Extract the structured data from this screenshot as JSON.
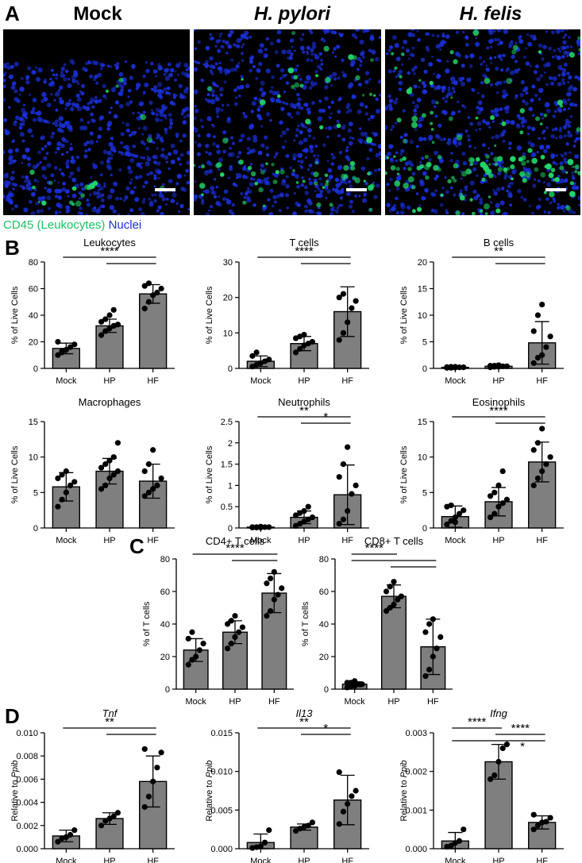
{
  "panels": {
    "A": "A",
    "B": "B",
    "C": "C",
    "D": "D"
  },
  "images": {
    "titles": [
      "Mock",
      "H. pylori",
      "H. felis"
    ],
    "legend_green": "CD45 (Leukocytes)",
    "legend_blue": "Nuclei",
    "colors": {
      "nuclei": "#1a2fd8",
      "cd45": "#22d66a",
      "background": "#000000"
    }
  },
  "colors": {
    "bar": "#7f7f7f",
    "point": "#000000"
  },
  "chart_data": [
    {
      "id": "leukocytes",
      "type": "bar",
      "title": "Leukocytes",
      "ylabel": "% of Live Cells",
      "categories": [
        "Mock",
        "HP",
        "HF"
      ],
      "values": [
        15,
        32,
        56
      ],
      "errors": [
        4,
        5,
        7
      ],
      "ylim": [
        0,
        80
      ],
      "yticks": [
        0,
        20,
        40,
        60,
        80
      ],
      "points": [
        [
          10,
          13,
          14,
          16,
          18,
          20,
          12
        ],
        [
          25,
          28,
          30,
          32,
          33,
          35,
          37,
          40,
          44
        ],
        [
          45,
          50,
          55,
          57,
          60,
          62,
          64
        ]
      ],
      "significance": [
        {
          "from": 0,
          "to": 2,
          "label": "****"
        },
        {
          "from": 1,
          "to": 2,
          "label": ""
        }
      ]
    },
    {
      "id": "t-cells",
      "type": "bar",
      "title": "T cells",
      "ylabel": "% of Live Cells",
      "categories": [
        "Mock",
        "HP",
        "HF"
      ],
      "values": [
        2,
        7,
        16
      ],
      "errors": [
        1.5,
        2,
        7
      ],
      "ylim": [
        0,
        30
      ],
      "yticks": [
        0,
        10,
        20,
        30
      ],
      "points": [
        [
          0.5,
          1,
          1.5,
          2,
          2.5,
          3.5,
          4.5
        ],
        [
          4.5,
          5.5,
          6.5,
          7,
          7.5,
          8.5,
          9,
          9.5
        ],
        [
          8,
          10,
          13,
          17,
          19,
          20,
          21
        ]
      ],
      "significance": [
        {
          "from": 0,
          "to": 2,
          "label": "****"
        },
        {
          "from": 1,
          "to": 2,
          "label": ""
        }
      ]
    },
    {
      "id": "b-cells",
      "type": "bar",
      "title": "B cells",
      "ylabel": "% of Live Cells",
      "categories": [
        "Mock",
        "HP",
        "HF"
      ],
      "values": [
        0.2,
        0.4,
        4.8
      ],
      "errors": [
        0.1,
        0.2,
        4
      ],
      "ylim": [
        0,
        20
      ],
      "yticks": [
        0,
        5,
        10,
        15,
        20
      ],
      "points": [
        [
          0.1,
          0.1,
          0.15,
          0.2,
          0.2,
          0.25,
          0.3,
          0.3
        ],
        [
          0.2,
          0.3,
          0.3,
          0.4,
          0.4,
          0.5,
          0.5,
          0.6
        ],
        [
          1,
          2,
          2.5,
          4,
          6,
          7,
          10,
          12
        ]
      ],
      "significance": [
        {
          "from": 0,
          "to": 2,
          "label": "**"
        },
        {
          "from": 1,
          "to": 2,
          "label": ""
        }
      ]
    },
    {
      "id": "macrophages",
      "type": "bar",
      "title": "Macrophages",
      "ylabel": "% of Live Cells",
      "categories": [
        "Mock",
        "HP",
        "HF"
      ],
      "values": [
        5.8,
        8,
        6.6
      ],
      "errors": [
        2,
        1.8,
        2.4
      ],
      "ylim": [
        0,
        15
      ],
      "yticks": [
        0,
        5,
        10,
        15
      ],
      "points": [
        [
          3,
          4,
          5,
          6,
          6.5,
          7,
          7.5,
          8
        ],
        [
          5.5,
          6,
          7,
          7.5,
          8,
          8.5,
          9,
          9.5,
          10,
          12
        ],
        [
          4.5,
          5,
          5.5,
          6,
          7,
          8,
          9,
          11
        ]
      ],
      "significance": []
    },
    {
      "id": "neutrophils",
      "type": "bar",
      "title": "Neutrophils",
      "ylabel": "% of Live Cells",
      "categories": [
        "Mock",
        "HP",
        "HF"
      ],
      "values": [
        0.02,
        0.25,
        0.78
      ],
      "errors": [
        0.01,
        0.15,
        0.7
      ],
      "ylim": [
        0,
        2.5
      ],
      "yticks": [
        0,
        0.5,
        1.0,
        1.5,
        2.0,
        2.5
      ],
      "points": [
        [
          0.01,
          0.01,
          0.01,
          0.02,
          0.02,
          0.02,
          0.02,
          0.03
        ],
        [
          0.05,
          0.1,
          0.15,
          0.2,
          0.25,
          0.3,
          0.35,
          0.4,
          0.5
        ],
        [
          0.1,
          0.2,
          0.4,
          0.8,
          1.0,
          1.2,
          1.5,
          1.9
        ]
      ],
      "significance": [
        {
          "from": 0,
          "to": 2,
          "label": "**"
        },
        {
          "from": 1,
          "to": 2,
          "label": "*"
        }
      ]
    },
    {
      "id": "eosinophils",
      "type": "bar",
      "title": "Eosinophils",
      "ylabel": "% of Live Cells",
      "categories": [
        "Mock",
        "HP",
        "HF"
      ],
      "values": [
        1.6,
        3.7,
        9.3
      ],
      "errors": [
        1.5,
        2,
        2.8
      ],
      "ylim": [
        0,
        15
      ],
      "yticks": [
        0,
        5,
        10,
        15
      ],
      "points": [
        [
          0.5,
          1,
          1.5,
          2,
          2.5,
          3,
          3.2,
          0.8
        ],
        [
          1.5,
          2,
          3,
          3.5,
          4,
          4.5,
          5,
          6,
          8
        ],
        [
          6,
          7,
          8,
          9,
          10,
          11,
          12,
          14
        ]
      ],
      "significance": [
        {
          "from": 0,
          "to": 2,
          "label": "****"
        },
        {
          "from": 1,
          "to": 2,
          "label": ""
        }
      ]
    },
    {
      "id": "cd4",
      "type": "bar",
      "title": "CD4+ T cells",
      "ylabel": "% of T cells",
      "categories": [
        "Mock",
        "HP",
        "HF"
      ],
      "values": [
        24,
        35,
        59
      ],
      "errors": [
        7,
        7,
        12
      ],
      "ylim": [
        0,
        80
      ],
      "yticks": [
        0,
        20,
        40,
        60,
        80
      ],
      "points": [
        [
          15,
          18,
          20,
          24,
          28,
          31,
          35
        ],
        [
          25,
          28,
          32,
          35,
          38,
          40,
          42,
          45
        ],
        [
          45,
          48,
          55,
          58,
          62,
          65,
          68,
          72
        ]
      ],
      "significance": [
        {
          "from": 0,
          "to": 2,
          "label": "****"
        },
        {
          "from": 1,
          "to": 2,
          "label": ""
        }
      ]
    },
    {
      "id": "cd8",
      "type": "bar",
      "title": "CD8+ T cells",
      "ylabel": "% of T cells",
      "categories": [
        "Mock",
        "HP",
        "HF"
      ],
      "values": [
        3,
        57,
        26
      ],
      "errors": [
        1.5,
        7,
        17
      ],
      "ylim": [
        0,
        80
      ],
      "yticks": [
        0,
        20,
        40,
        60,
        80
      ],
      "points": [
        [
          1,
          2,
          2,
          3,
          3,
          4,
          4,
          5
        ],
        [
          48,
          50,
          52,
          55,
          57,
          60,
          63,
          66
        ],
        [
          8,
          12,
          20,
          25,
          32,
          35,
          40,
          43
        ]
      ],
      "significance": [
        {
          "from": 0,
          "to": 1,
          "label": "****"
        },
        {
          "from": 0,
          "to": 2,
          "label": ""
        },
        {
          "from": 1,
          "to": 2,
          "label": ""
        }
      ]
    },
    {
      "id": "tnf",
      "type": "bar",
      "title": "Tnf",
      "title_italic": true,
      "ylabel": "Relative to Ppib",
      "ylabel_italic_part": "Ppib",
      "categories": [
        "Mock",
        "HP",
        "HF"
      ],
      "values": [
        0.0011,
        0.0026,
        0.0058
      ],
      "errors": [
        0.0005,
        0.0005,
        0.0022
      ],
      "ylim": [
        0,
        0.01
      ],
      "yticks": [
        0,
        0.002,
        0.004,
        0.006,
        0.008,
        0.01
      ],
      "tickdecimals": 3,
      "points": [
        [
          0.0006,
          0.0009,
          0.001,
          0.0012,
          0.0016
        ],
        [
          0.002,
          0.0024,
          0.0026,
          0.0028,
          0.0031
        ],
        [
          0.0036,
          0.0045,
          0.0058,
          0.007,
          0.0083,
          0.0086
        ]
      ],
      "significance": [
        {
          "from": 0,
          "to": 2,
          "label": "**"
        },
        {
          "from": 1,
          "to": 2,
          "label": ""
        }
      ]
    },
    {
      "id": "il13",
      "type": "bar",
      "title": "Il13",
      "title_italic": true,
      "ylabel": "Relative to Ppib",
      "ylabel_italic_part": "Ppib",
      "categories": [
        "Mock",
        "HP",
        "HF"
      ],
      "values": [
        0.0008,
        0.0028,
        0.0063
      ],
      "errors": [
        0.0011,
        0.0004,
        0.0032
      ],
      "ylim": [
        0,
        0.015
      ],
      "yticks": [
        0,
        0.005,
        0.01,
        0.015
      ],
      "tickdecimals": 3,
      "points": [
        [
          0.0001,
          0.0002,
          0.0003,
          0.0008,
          0.0024
        ],
        [
          0.0023,
          0.0026,
          0.0028,
          0.003,
          0.0034
        ],
        [
          0.0032,
          0.0048,
          0.0058,
          0.0068,
          0.0075,
          0.0099
        ]
      ],
      "significance": [
        {
          "from": 0,
          "to": 2,
          "label": "**"
        },
        {
          "from": 1,
          "to": 2,
          "label": "*"
        }
      ]
    },
    {
      "id": "ifng",
      "type": "bar",
      "title": "Ifng",
      "title_italic": true,
      "ylabel": "Relative to Ppib",
      "ylabel_italic_part": "Ppib",
      "categories": [
        "Mock",
        "HP",
        "HF"
      ],
      "values": [
        0.0002,
        0.00225,
        0.00068
      ],
      "errors": [
        0.00022,
        0.00045,
        0.00017
      ],
      "ylim": [
        0,
        0.003
      ],
      "yticks": [
        0,
        0.001,
        0.002,
        0.003
      ],
      "tickdecimals": 3,
      "points": [
        [
          5e-05,
          8e-05,
          0.00015,
          0.0002,
          0.0005
        ],
        [
          0.0018,
          0.0019,
          0.00225,
          0.0026,
          0.0027
        ],
        [
          0.0005,
          0.0006,
          0.00068,
          0.0007,
          0.0008,
          0.00088
        ]
      ],
      "significance": [
        {
          "from": 0,
          "to": 1,
          "label": "****"
        },
        {
          "from": 1,
          "to": 2,
          "label": "****"
        },
        {
          "from": 0,
          "to": 2,
          "label": ""
        },
        {
          "from": 1,
          "to": 2,
          "label": "*",
          "type": "lone"
        }
      ]
    }
  ]
}
